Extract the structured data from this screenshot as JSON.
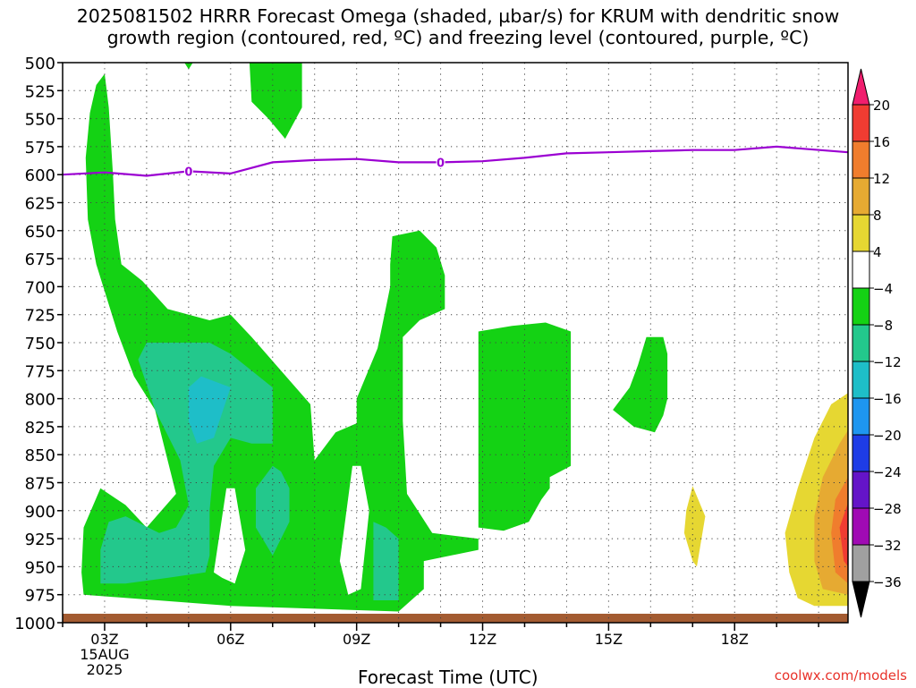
{
  "chart_data": {
    "type": "heatmap",
    "title": "2025081502 HRRR Forecast Omega (shaded, µbar/s) for KRUM with dendritic snow growth region (contoured, red, ºC) and freezing level (contoured, purple, ºC)",
    "title_lines": [
      "2025081502 HRRR Forecast Omega (shaded, µbar/s) for KRUM with dendritic snow",
      "growth region (contoured, red, ºC) and freezing level (contoured, purple, ºC)"
    ],
    "xlabel": "Forecast Time (UTC)",
    "ylabel": "",
    "x_range_hours": [
      2,
      20.7
    ],
    "y_range_hpa": [
      500,
      1000
    ],
    "y_ticks": [
      500,
      525,
      550,
      575,
      600,
      625,
      650,
      675,
      700,
      725,
      750,
      775,
      800,
      825,
      850,
      875,
      900,
      925,
      950,
      975,
      1000
    ],
    "x_ticks": [
      {
        "hour": 3,
        "label": "03Z"
      },
      {
        "hour": 6,
        "label": "06Z"
      },
      {
        "hour": 9,
        "label": "09Z"
      },
      {
        "hour": 12,
        "label": "12Z"
      },
      {
        "hour": 15,
        "label": "15Z"
      },
      {
        "hour": 18,
        "label": "18Z"
      }
    ],
    "date_label": [
      "15AUG",
      "2025"
    ],
    "grid": true,
    "colorbar": {
      "placement": "right",
      "labels": [
        "20",
        "16",
        "12",
        "8",
        "4",
        "−4",
        "−8",
        "−12",
        "−16",
        "−20",
        "−24",
        "−28",
        "−32",
        "−36"
      ],
      "colors": [
        "#f01e6e",
        "#f03c32",
        "#f07d2d",
        "#e6aa32",
        "#e6d732",
        "#ffffff",
        "#14d214",
        "#23c88c",
        "#1ebec8",
        "#1e96f0",
        "#1e3ce6",
        "#6414c8",
        "#a00ab4",
        "#a0a0a0",
        "#000000"
      ]
    },
    "freezing_level": {
      "label": "0",
      "color": "#9b00d2",
      "points": [
        [
          2,
          600
        ],
        [
          3,
          598
        ],
        [
          4,
          601
        ],
        [
          5,
          597
        ],
        [
          6,
          599
        ],
        [
          7,
          589
        ],
        [
          8,
          587
        ],
        [
          9,
          586
        ],
        [
          10,
          589
        ],
        [
          11,
          589
        ],
        [
          12,
          588
        ],
        [
          13,
          585
        ],
        [
          14,
          581
        ],
        [
          15,
          580
        ],
        [
          16,
          579
        ],
        [
          17,
          578
        ],
        [
          18,
          578
        ],
        [
          19,
          575
        ],
        [
          20.7,
          580
        ]
      ]
    },
    "shaded_regions": [
      {
        "name": "omega-minus-4-main",
        "color": "#14d214",
        "points": [
          [
            2.55,
            585
          ],
          [
            2.65,
            545
          ],
          [
            2.8,
            520
          ],
          [
            3.0,
            510
          ],
          [
            3.1,
            540
          ],
          [
            3.2,
            600
          ],
          [
            3.25,
            640
          ],
          [
            3.4,
            680
          ],
          [
            3.9,
            695
          ],
          [
            4.5,
            720
          ],
          [
            5.5,
            730
          ],
          [
            6.0,
            725
          ],
          [
            6.5,
            745
          ],
          [
            7.2,
            775
          ],
          [
            7.9,
            805
          ],
          [
            8.0,
            855
          ],
          [
            8.5,
            830
          ],
          [
            9.0,
            822
          ],
          [
            9.0,
            800
          ],
          [
            9.5,
            755
          ],
          [
            9.8,
            700
          ],
          [
            9.8,
            680
          ],
          [
            9.85,
            655
          ],
          [
            10.5,
            650
          ],
          [
            10.9,
            665
          ],
          [
            11.1,
            690
          ],
          [
            11.1,
            720
          ],
          [
            10.5,
            730
          ],
          [
            10.1,
            745
          ],
          [
            10.1,
            820
          ],
          [
            10.2,
            885
          ],
          [
            10.8,
            920
          ],
          [
            11.9,
            925
          ],
          [
            11.9,
            935
          ],
          [
            10.6,
            945
          ],
          [
            10.6,
            970
          ],
          [
            10.0,
            990
          ],
          [
            6.0,
            985
          ],
          [
            2.5,
            975
          ],
          [
            2.45,
            955
          ],
          [
            2.5,
            915
          ],
          [
            2.9,
            880
          ],
          [
            3.5,
            895
          ],
          [
            4.0,
            915
          ],
          [
            4.7,
            885
          ],
          [
            4.5,
            855
          ],
          [
            4.2,
            810
          ],
          [
            3.7,
            780
          ],
          [
            3.3,
            740
          ],
          [
            2.8,
            680
          ],
          [
            2.6,
            640
          ]
        ]
      },
      {
        "name": "omega-minus-4-top-small",
        "color": "#14d214",
        "points": [
          [
            4.9,
            500
          ],
          [
            5.1,
            500
          ],
          [
            5.0,
            506
          ]
        ]
      },
      {
        "name": "omega-minus-4-top",
        "color": "#14d214",
        "points": [
          [
            6.45,
            500
          ],
          [
            7.7,
            500
          ],
          [
            7.7,
            540
          ],
          [
            7.3,
            568
          ],
          [
            6.9,
            550
          ],
          [
            6.5,
            535
          ]
        ]
      },
      {
        "name": "omega-minus-4-mid",
        "color": "#14d214",
        "points": [
          [
            11.9,
            740
          ],
          [
            12.7,
            735
          ],
          [
            13.5,
            732
          ],
          [
            14.1,
            740
          ],
          [
            14.1,
            860
          ],
          [
            13.6,
            870
          ],
          [
            13.6,
            880
          ],
          [
            13.4,
            890
          ],
          [
            13.1,
            910
          ],
          [
            12.5,
            918
          ],
          [
            11.9,
            915
          ]
        ]
      },
      {
        "name": "omega-minus-4-east",
        "color": "#14d214",
        "points": [
          [
            15.9,
            745
          ],
          [
            16.3,
            745
          ],
          [
            16.4,
            760
          ],
          [
            16.4,
            800
          ],
          [
            16.3,
            815
          ],
          [
            16.1,
            830
          ],
          [
            15.6,
            825
          ],
          [
            15.1,
            810
          ],
          [
            15.5,
            790
          ],
          [
            15.7,
            770
          ]
        ]
      },
      {
        "name": "omega-minus-8-a",
        "color": "#23c88c",
        "points": [
          [
            3.1,
            910
          ],
          [
            3.5,
            905
          ],
          [
            4.3,
            920
          ],
          [
            4.7,
            915
          ],
          [
            5.0,
            895
          ],
          [
            4.8,
            855
          ],
          [
            4.2,
            810
          ],
          [
            3.8,
            765
          ],
          [
            4.0,
            750
          ],
          [
            5.5,
            750
          ],
          [
            6.0,
            760
          ],
          [
            6.5,
            775
          ],
          [
            7.0,
            790
          ],
          [
            7.0,
            840
          ],
          [
            6.5,
            840
          ],
          [
            6.0,
            835
          ],
          [
            5.6,
            860
          ],
          [
            5.5,
            900
          ],
          [
            5.5,
            940
          ],
          [
            5.4,
            955
          ],
          [
            4.5,
            960
          ],
          [
            3.5,
            965
          ],
          [
            2.9,
            965
          ],
          [
            2.9,
            935
          ]
        ]
      },
      {
        "name": "omega-minus-8-b",
        "color": "#23c88c",
        "points": [
          [
            7.0,
            860
          ],
          [
            7.2,
            865
          ],
          [
            7.4,
            880
          ],
          [
            7.4,
            910
          ],
          [
            7.0,
            940
          ],
          [
            6.6,
            915
          ],
          [
            6.6,
            880
          ]
        ]
      },
      {
        "name": "omega-minus-8-c",
        "color": "#23c88c",
        "points": [
          [
            9.4,
            910
          ],
          [
            9.7,
            915
          ],
          [
            10.0,
            925
          ],
          [
            10.0,
            980
          ],
          [
            9.4,
            980
          ]
        ]
      },
      {
        "name": "omega-minus-12",
        "color": "#1ebec8",
        "points": [
          [
            5.0,
            790
          ],
          [
            5.3,
            780
          ],
          [
            6.0,
            790
          ],
          [
            5.6,
            835
          ],
          [
            5.2,
            840
          ],
          [
            5.0,
            820
          ]
        ]
      },
      {
        "name": "omega-plus-4-small",
        "color": "#e6d732",
        "points": [
          [
            17.0,
            878
          ],
          [
            17.3,
            905
          ],
          [
            17.1,
            950
          ],
          [
            17.0,
            945
          ],
          [
            16.8,
            920
          ],
          [
            16.85,
            900
          ]
        ]
      },
      {
        "name": "omega-plus-4-east",
        "color": "#e6d732",
        "points": [
          [
            20.7,
            795
          ],
          [
            20.3,
            805
          ],
          [
            19.9,
            835
          ],
          [
            19.5,
            880
          ],
          [
            19.2,
            920
          ],
          [
            19.3,
            955
          ],
          [
            19.5,
            978
          ],
          [
            19.9,
            985
          ],
          [
            20.7,
            985
          ]
        ]
      },
      {
        "name": "omega-plus-8-east",
        "color": "#e6aa32",
        "points": [
          [
            20.7,
            828
          ],
          [
            20.5,
            840
          ],
          [
            20.1,
            870
          ],
          [
            19.9,
            905
          ],
          [
            19.9,
            945
          ],
          [
            20.1,
            970
          ],
          [
            20.7,
            975
          ]
        ]
      },
      {
        "name": "omega-plus-12-east",
        "color": "#f07d2d",
        "points": [
          [
            20.7,
            870
          ],
          [
            20.4,
            890
          ],
          [
            20.3,
            920
          ],
          [
            20.4,
            955
          ],
          [
            20.7,
            965
          ]
        ]
      },
      {
        "name": "omega-plus-16-east",
        "color": "#f03c32",
        "points": [
          [
            20.7,
            893
          ],
          [
            20.5,
            915
          ],
          [
            20.6,
            945
          ],
          [
            20.7,
            950
          ]
        ]
      }
    ],
    "white_holes": [
      {
        "points": [
          [
            5.9,
            880
          ],
          [
            6.1,
            880
          ],
          [
            6.35,
            935
          ],
          [
            6.1,
            965
          ],
          [
            5.8,
            960
          ],
          [
            5.6,
            955
          ]
        ]
      },
      {
        "points": [
          [
            8.9,
            860
          ],
          [
            9.1,
            860
          ],
          [
            9.3,
            900
          ],
          [
            9.1,
            970
          ],
          [
            8.8,
            975
          ],
          [
            8.6,
            945
          ]
        ]
      }
    ],
    "terrain": {
      "color": "#a35b31",
      "top_hpa": 992
    }
  },
  "footer": {
    "x_axis_title": "Forecast Time (UTC)",
    "credit": "coolwx.com/models"
  }
}
